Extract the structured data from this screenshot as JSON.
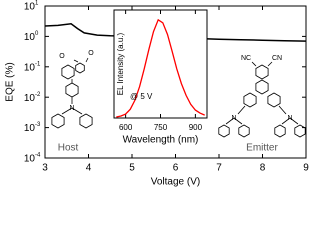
{
  "chart_data": [
    {
      "type": "line",
      "x_label": "Voltage (V)",
      "y_label": "EQE (%)",
      "log_y": true,
      "x": [
        3,
        3.3,
        3.6,
        3.75,
        3.9,
        4.2,
        4.5,
        5,
        5.5,
        6,
        6.5,
        7,
        7.5,
        8,
        8.5,
        9
      ],
      "series": [
        {
          "name": "EQE",
          "color": "#000000",
          "values": [
            2.2,
            2.3,
            2.6,
            1.8,
            1.3,
            1.1,
            1.05,
            1.0,
            0.95,
            0.9,
            0.85,
            0.8,
            0.78,
            0.75,
            0.72,
            0.7
          ]
        }
      ],
      "xlim": [
        3,
        9
      ],
      "xticks": [
        3,
        4,
        5,
        6,
        7,
        8,
        9
      ],
      "ylim": [
        0.0001,
        10
      ],
      "yticks": [
        {
          "value": 0.0001,
          "label": "10",
          "exponent": "-4"
        },
        {
          "value": 0.001,
          "label": "10",
          "exponent": "-3"
        },
        {
          "value": 0.01,
          "label": "10",
          "exponent": "-2"
        },
        {
          "value": 0.1,
          "label": "10",
          "exponent": "-1"
        },
        {
          "value": 1,
          "label": "10",
          "exponent": "0"
        },
        {
          "value": 10,
          "label": "10",
          "exponent": "1"
        }
      ],
      "annotations": [
        "Host",
        "Emitter"
      ],
      "structure_labels": [
        "O",
        "O",
        "N",
        "NC",
        "CN",
        "N",
        "N"
      ]
    },
    {
      "type": "line",
      "x_label": "Wavelength (nm)",
      "y_label": "EL Intensity (a.u.)",
      "x": [
        560,
        580,
        600,
        620,
        640,
        660,
        680,
        700,
        720,
        740,
        760,
        780,
        800,
        820,
        840,
        860,
        880,
        900,
        920,
        940
      ],
      "series": [
        {
          "name": "EL",
          "color": "#ff0000",
          "values": [
            0.01,
            0.02,
            0.04,
            0.09,
            0.18,
            0.32,
            0.5,
            0.7,
            0.88,
            1.0,
            0.97,
            0.85,
            0.68,
            0.5,
            0.35,
            0.23,
            0.14,
            0.08,
            0.05,
            0.03
          ]
        }
      ],
      "xlim": [
        550,
        950
      ],
      "xticks": [
        600,
        750,
        900
      ],
      "ylim": [
        0,
        1.1
      ],
      "annotations": [
        "@ 5 V"
      ]
    }
  ]
}
